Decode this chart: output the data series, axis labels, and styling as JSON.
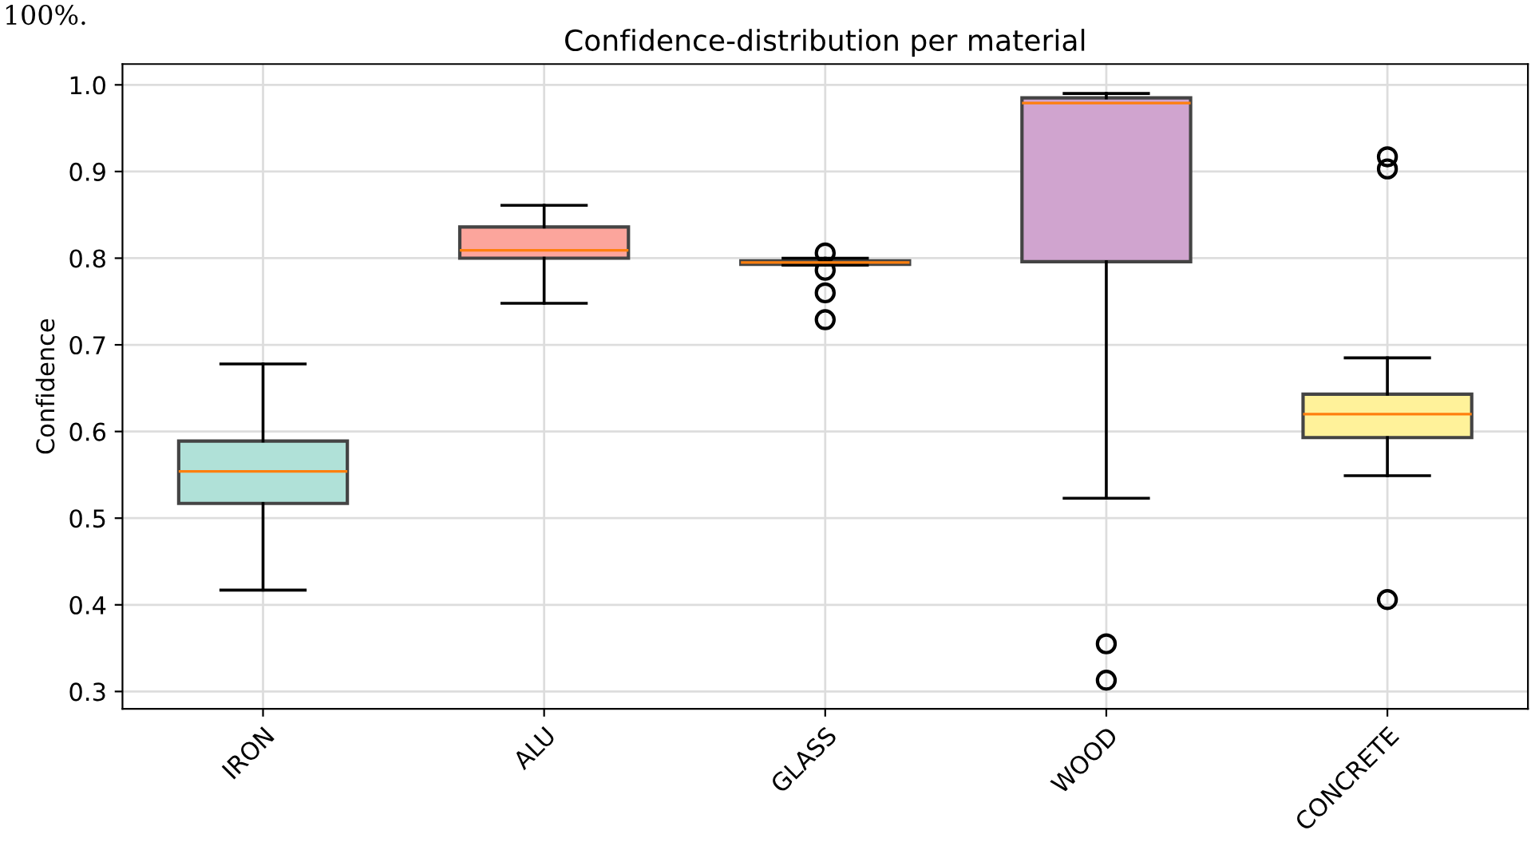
{
  "chart_data": {
    "type": "box",
    "title": "Confidence-distribution per material",
    "ylabel": "Confidence",
    "annotations": [
      "100%."
    ],
    "categories": [
      "IRON",
      "ALU",
      "GLASS",
      "WOOD",
      "CONCRETE"
    ],
    "colors": [
      "#b0e1d8",
      "#fca59c",
      "#d2d0e5",
      "#d0a4cf",
      "#fff29a"
    ],
    "boxes": [
      {
        "low": 0.417,
        "q1": 0.517,
        "median": 0.554,
        "q3": 0.589,
        "high": 0.678
      },
      {
        "low": 0.748,
        "q1": 0.8,
        "median": 0.809,
        "q3": 0.836,
        "high": 0.861
      },
      {
        "low": 0.792,
        "q1": 0.793,
        "median": 0.795,
        "q3": 0.797,
        "high": 0.8,
        "outliers": [
          0.806,
          0.786,
          0.76,
          0.729
        ]
      },
      {
        "low": 0.523,
        "q1": 0.796,
        "median": 0.979,
        "q3": 0.985,
        "high": 0.99,
        "outliers": [
          0.355,
          0.313
        ]
      },
      {
        "low": 0.549,
        "q1": 0.593,
        "median": 0.62,
        "q3": 0.643,
        "high": 0.685,
        "outliers": [
          0.917,
          0.903,
          0.406
        ]
      }
    ],
    "ylim": [
      0.28,
      1.024
    ],
    "yticks": [
      {
        "value": 0.3,
        "label": "0.3"
      },
      {
        "value": 0.4,
        "label": "0.4"
      },
      {
        "value": 0.5,
        "label": "0.5"
      },
      {
        "value": 0.6,
        "label": "0.6"
      },
      {
        "value": 0.7,
        "label": "0.7"
      },
      {
        "value": 0.8,
        "label": "0.8"
      },
      {
        "value": 0.9,
        "label": "0.9"
      },
      {
        "value": 1.0,
        "label": "1.0"
      }
    ],
    "grid": true
  }
}
